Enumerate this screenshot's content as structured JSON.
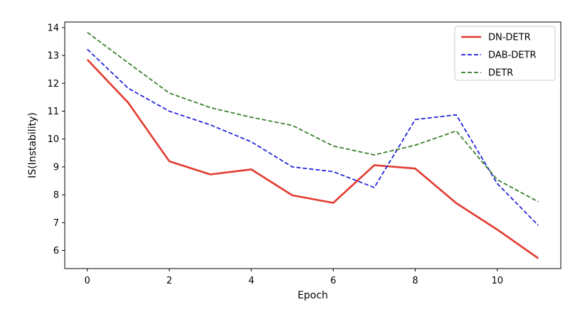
{
  "chart_data": {
    "type": "line",
    "xlabel": "Epoch",
    "ylabel": "IS(Instability)",
    "xlim": [
      -0.55,
      11.55
    ],
    "ylim": [
      5.35,
      14.2
    ],
    "xticks": [
      0,
      2,
      4,
      6,
      8,
      10
    ],
    "yticks": [
      6,
      7,
      8,
      9,
      10,
      11,
      12,
      13,
      14
    ],
    "grid": false,
    "legend_position": "top-right",
    "x": [
      0,
      1,
      2,
      3,
      4,
      5,
      6,
      7,
      8,
      9,
      10,
      11
    ],
    "series": [
      {
        "name": "DN-DETR",
        "color": "#e33a2f",
        "style": "solid",
        "values": [
          12.85,
          11.3,
          9.2,
          8.73,
          8.91,
          7.98,
          7.71,
          9.06,
          8.94,
          7.7,
          6.75,
          5.72
        ]
      },
      {
        "name": "DAB-DETR",
        "color": "#1a1adb",
        "style": "dashed",
        "values": [
          13.22,
          11.82,
          11.0,
          10.51,
          9.9,
          9.0,
          8.83,
          8.26,
          10.7,
          10.87,
          8.4,
          6.9
        ]
      },
      {
        "name": "DETR",
        "color": "#2f7a22",
        "style": "dashed",
        "values": [
          13.83,
          12.73,
          11.65,
          11.13,
          10.78,
          10.49,
          9.75,
          9.43,
          9.78,
          10.29,
          8.54,
          7.75
        ]
      }
    ]
  }
}
